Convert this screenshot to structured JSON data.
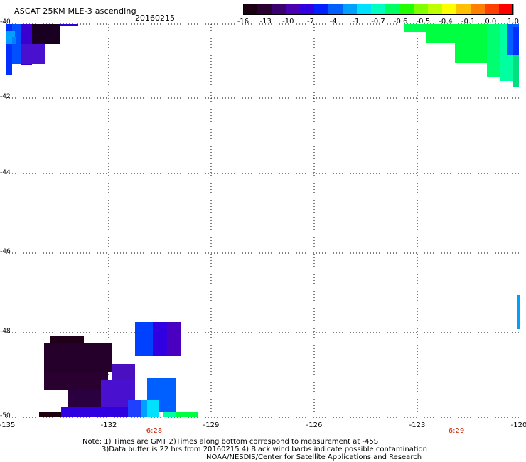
{
  "header": {
    "title": "ASCAT 25KM MLE-3 ascending",
    "date": "20160215"
  },
  "colorbar": {
    "labels": [
      "-16",
      "-13",
      "-10",
      "-7",
      "-4",
      "-1",
      "-0.7",
      "-0.6",
      "-0.5",
      "-0.4",
      "-0.1",
      "0.0",
      "1.0"
    ],
    "colors": [
      "#1a0010",
      "#2a0030",
      "#3a0070",
      "#4a00b0",
      "#3000e0",
      "#0020ff",
      "#0060ff",
      "#00a0ff",
      "#00e0ff",
      "#00ffc0",
      "#00ff60",
      "#20ff00",
      "#80ff00",
      "#c0ff00",
      "#ffff00",
      "#ffc000",
      "#ff8000",
      "#ff4000",
      "#ff0000"
    ]
  },
  "map": {
    "lat_labels": [
      "-40",
      "-42",
      "-44",
      "-46",
      "-48",
      "-50"
    ],
    "lon_labels": [
      "-135",
      "-132",
      "-129",
      "-126",
      "-123",
      "-120"
    ],
    "times": [
      {
        "label": "6:28",
        "lon": -131.85
      },
      {
        "label": "6:29",
        "lon": -122.9
      }
    ]
  },
  "notes": {
    "line1": "Note: 1) Times are GMT 2)Times along bottom correspond to measurement at -45S",
    "line2": "3)Data buffer is 22 hrs from 20160215 4) Black wind barbs indicate possible contamination",
    "line3": "NOAA/NESDIS/Center for Satellite Applications and Research"
  }
}
